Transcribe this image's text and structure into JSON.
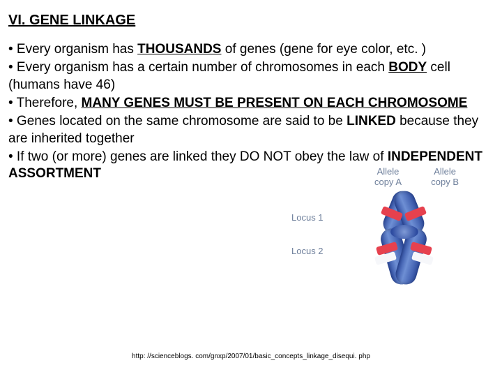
{
  "heading": "VI. GENE LINKAGE",
  "bullets": {
    "b1_pre": "•  Every organism has ",
    "b1_em": "THOUSANDS",
    "b1_post": " of genes (gene for eye color, etc. )",
    "b2_pre": "•  Every organism has a certain number of chromosomes in each ",
    "b2_em": "BODY",
    "b2_post": " cell (humans have 46)",
    "b3_pre": "•  Therefore, ",
    "b3_em": "MANY GENES MUST BE PRESENT ON EACH CHROMOSOME",
    "b4_pre": "•  Genes located on the same chromosome are said to be ",
    "b4_em": "LINKED",
    "b4_post": " because they are inherited together",
    "b5_pre": "•  If two (or more) genes are linked they DO NOT obey the law of ",
    "b5_em": "INDEPENDENT ASSORTMENT"
  },
  "diagram": {
    "alleleA_line1": "Allele",
    "alleleA_line2": "copy A",
    "alleleB_line1": "Allele",
    "alleleB_line2": "copy B",
    "locus1": "Locus 1",
    "locus2": "Locus 2",
    "colors": {
      "chromatid": "#2d4ba0",
      "band_red": "#e6414e",
      "band_white": "#f6f7fa",
      "label": "#6e7f9b"
    }
  },
  "citation": "http: //scienceblogs. com/gnxp/2007/01/basic_concepts_linkage_disequi. php"
}
